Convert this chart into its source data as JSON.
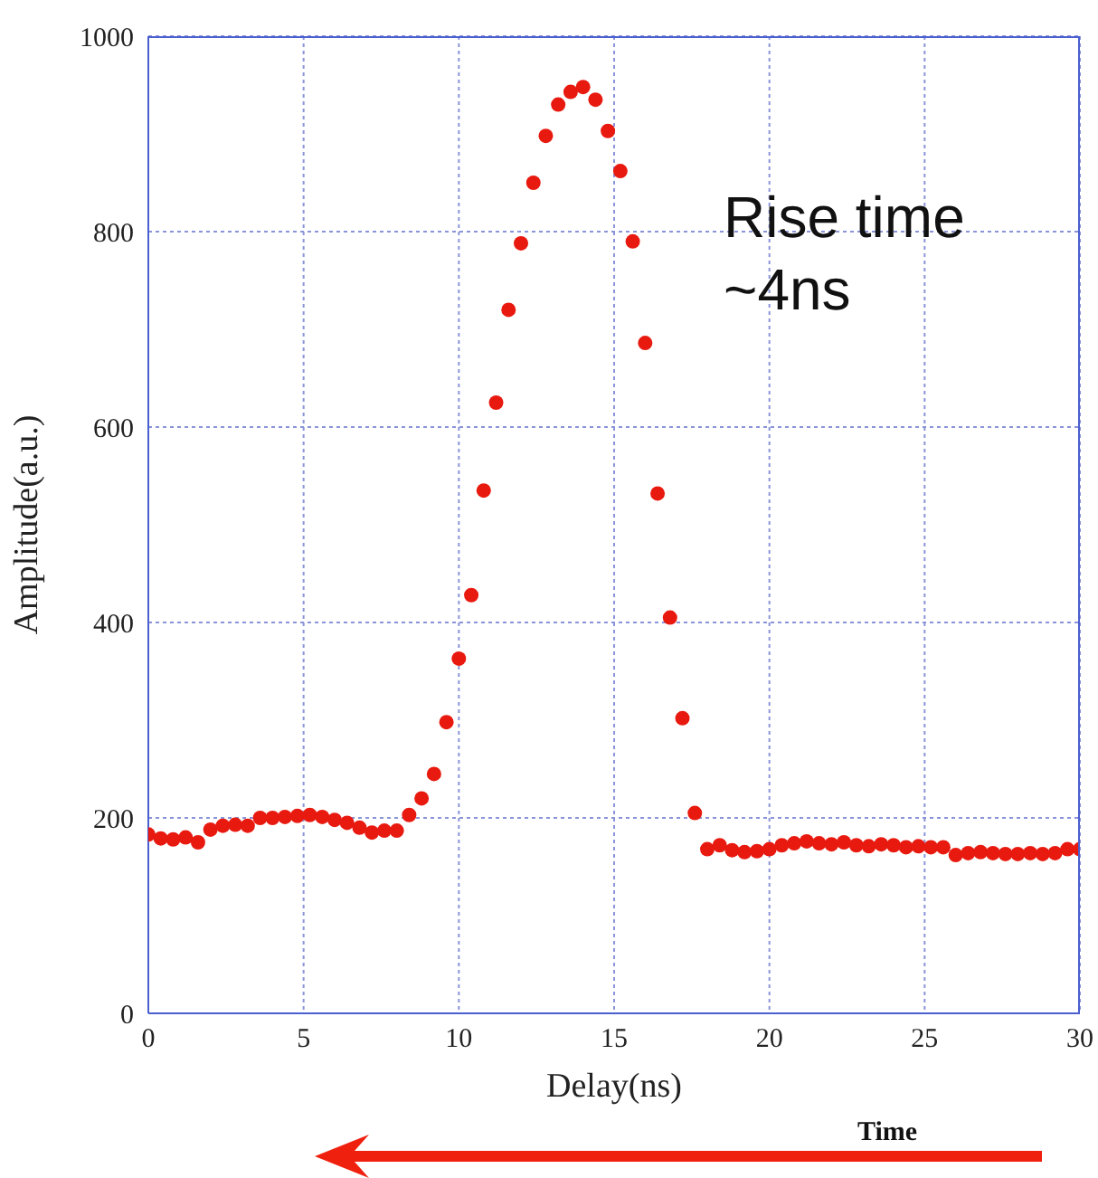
{
  "chart_data": {
    "type": "scatter",
    "xlabel": "Delay(ns)",
    "ylabel": "Amplitude(a.u.)",
    "x": [
      0,
      0.4,
      0.8,
      1.2,
      1.6,
      2,
      2.4,
      2.8,
      3.2,
      3.6,
      4,
      4.4,
      4.8,
      5.2,
      5.6,
      6,
      6.4,
      6.8,
      7.2,
      7.6,
      8,
      8.4,
      8.8,
      9.2,
      9.6,
      10,
      10.4,
      10.8,
      11.2,
      11.6,
      12,
      12.4,
      12.8,
      13.2,
      13.6,
      14,
      14.4,
      14.8,
      15.2,
      15.6,
      16,
      16.4,
      16.8,
      17.2,
      17.6,
      18,
      18.4,
      18.8,
      19.2,
      19.6,
      20,
      20.4,
      20.8,
      21.2,
      21.6,
      22,
      22.4,
      22.8,
      23.2,
      23.6,
      24,
      24.4,
      24.8,
      25.2,
      25.6,
      26,
      26.4,
      26.8,
      27.2,
      27.6,
      28,
      28.4,
      28.8,
      29.2,
      29.6,
      30
    ],
    "series": [
      {
        "color": "#e8190f",
        "values": [
          183,
          179,
          178,
          180,
          175,
          188,
          192,
          193,
          192,
          200,
          200,
          201,
          202,
          203,
          201,
          198,
          195,
          190,
          185,
          187,
          187,
          203,
          220,
          245,
          298,
          363,
          428,
          535,
          625,
          720,
          788,
          850,
          898,
          930,
          943,
          948,
          935,
          903,
          862,
          790,
          686,
          532,
          405,
          302,
          205,
          168,
          172,
          167,
          165,
          166,
          168,
          172,
          174,
          176,
          174,
          173,
          175,
          172,
          171,
          173,
          172,
          170,
          171,
          170,
          170,
          162,
          164,
          165,
          164,
          163,
          163,
          164,
          163,
          164,
          168,
          168
        ]
      }
    ],
    "xlim": [
      0,
      30
    ],
    "xticks": [
      0,
      5,
      10,
      15,
      20,
      25,
      30
    ],
    "ylim": [
      0,
      1000
    ],
    "yticks": [
      0,
      200,
      400,
      600,
      800,
      1000
    ],
    "grid": true,
    "marker": "circle",
    "legend": false,
    "annotations": [
      "Rise time ~4ns",
      "Time"
    ]
  }
}
